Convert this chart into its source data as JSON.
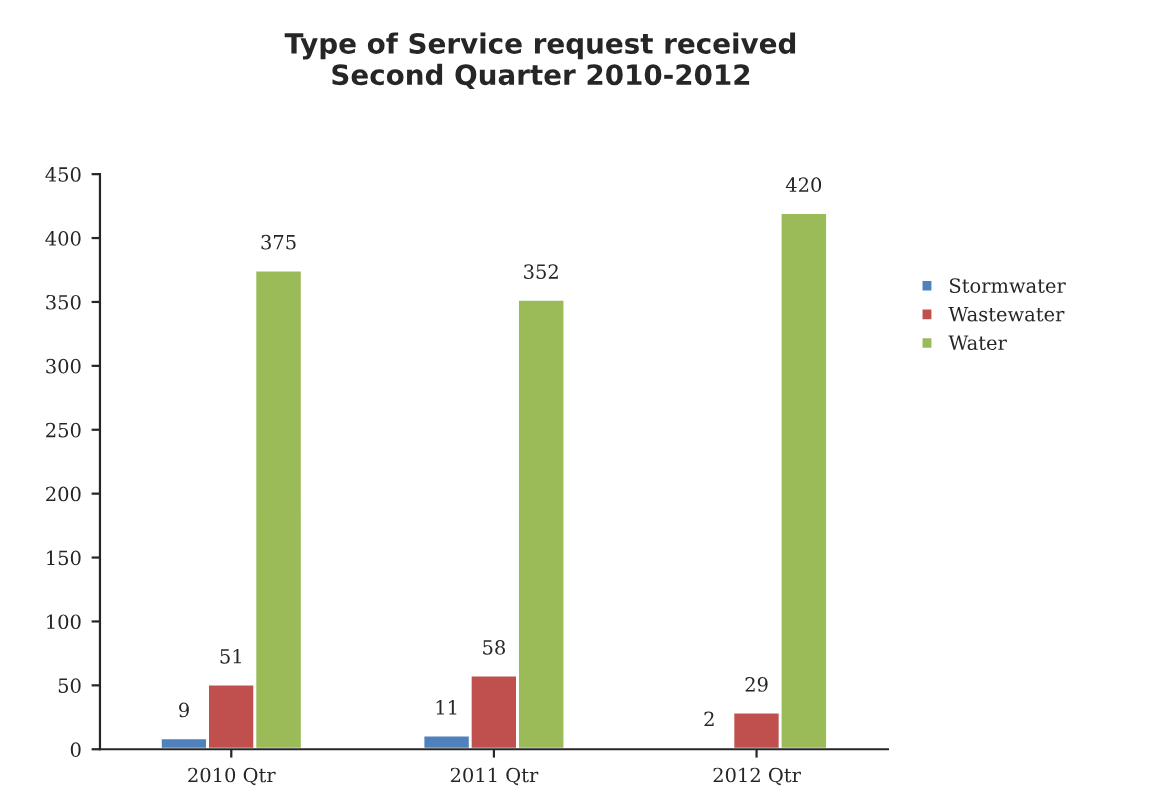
{
  "chart_data": {
    "type": "bar",
    "title": "Type of Service request received\nSecond Quarter 2010-2012",
    "categories": [
      "2010 Qtr",
      "2011 Qtr",
      "2012 Qtr"
    ],
    "series": [
      {
        "name": "Stormwater",
        "color": "#4f81bd",
        "values": [
          9,
          11,
          2
        ]
      },
      {
        "name": "Wastewater",
        "color": "#c0504d",
        "values": [
          51,
          58,
          29
        ]
      },
      {
        "name": "Water",
        "color": "#9bbb59",
        "values": [
          375,
          352,
          420
        ]
      }
    ],
    "ylim": [
      0,
      450
    ],
    "yticks": [
      0,
      50,
      100,
      150,
      200,
      250,
      300,
      350,
      400,
      450
    ],
    "data_labels": true,
    "legend": "right"
  }
}
